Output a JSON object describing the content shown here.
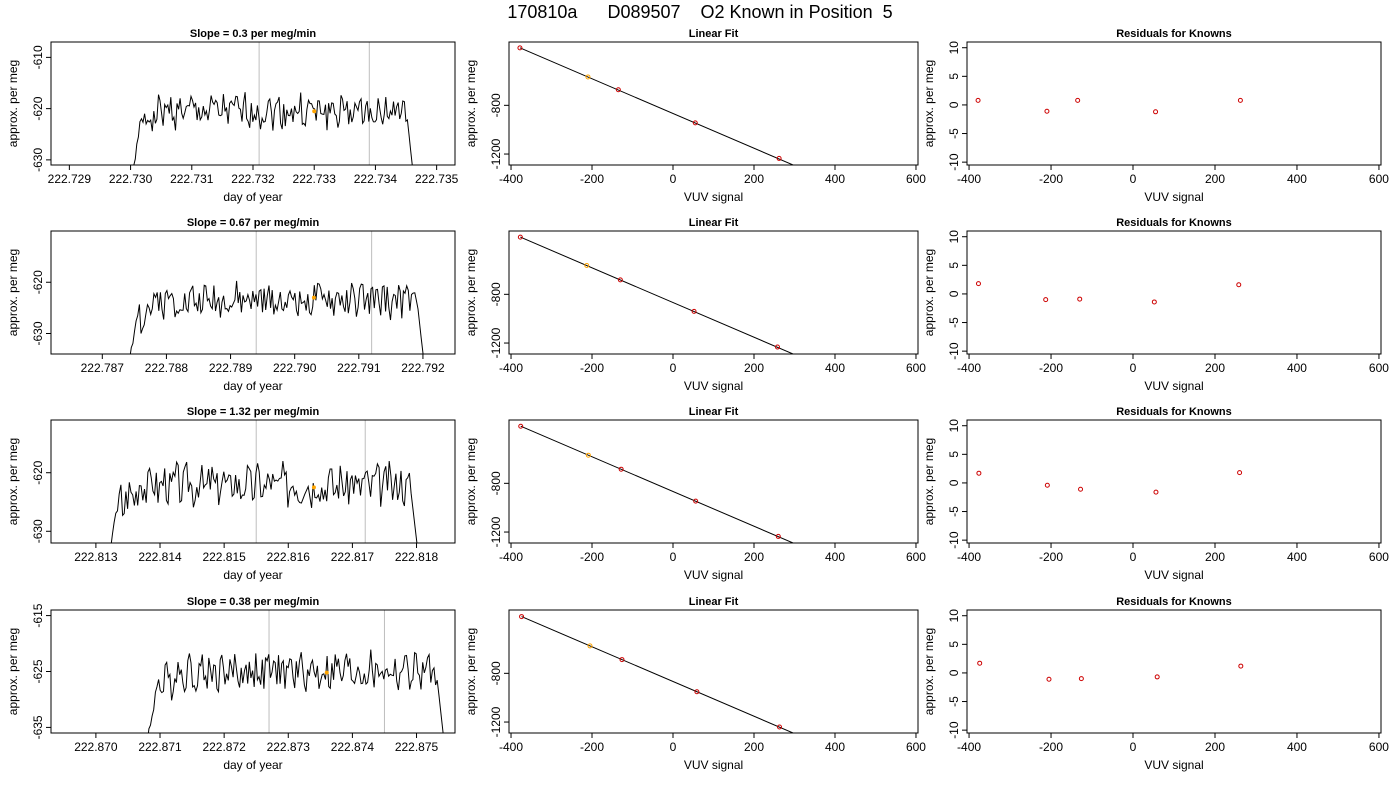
{
  "page_title": "170810a      D089507    O2 Known in Position  5",
  "colors": {
    "trace": "#000000",
    "vline": "#bebebe",
    "marker_orange": "#ffa500",
    "marker_red": "#cd0000",
    "fit_line": "#000000"
  },
  "chart_data": [
    {
      "type": "line",
      "row": 0,
      "title": "Slope =  0.3  per meg/min",
      "xlabel": "day of year",
      "ylabel": "approx. per meg",
      "xlim": [
        222.7287,
        222.7353
      ],
      "ylim": [
        -631,
        -607
      ],
      "xticks": [
        222.729,
        222.73,
        222.731,
        222.732,
        222.733,
        222.734,
        222.735
      ],
      "xtick_labels": [
        "222.729",
        "222.730",
        "222.731",
        "222.732",
        "222.733",
        "222.734",
        "222.735"
      ],
      "yticks": [
        -630,
        -620,
        -610
      ],
      "ytick_labels": [
        "-630",
        "-620",
        "-610"
      ],
      "vlines": [
        222.7321,
        222.7339
      ],
      "trace": {
        "start": 222.7299,
        "end": 222.7347,
        "level": -620.5,
        "amp": 2.3,
        "seed": 1
      },
      "highlight": {
        "x": 222.733,
        "y": -620.5
      }
    },
    {
      "type": "line",
      "row": 1,
      "title": "Slope =  0.67  per meg/min",
      "xlabel": "day of year",
      "ylabel": "approx. per meg",
      "xlim": [
        222.7862,
        222.7925
      ],
      "ylim": [
        -634,
        -610
      ],
      "xticks": [
        222.787,
        222.788,
        222.789,
        222.79,
        222.791,
        222.792
      ],
      "xtick_labels": [
        "222.787",
        "222.788",
        "222.789",
        "222.790",
        "222.791",
        "222.792"
      ],
      "yticks": [
        -630,
        -620
      ],
      "ytick_labels": [
        "-630",
        "-620"
      ],
      "vlines": [
        222.7894,
        222.7912
      ],
      "trace": {
        "start": 222.7873,
        "end": 222.7921,
        "level": -623.5,
        "amp": 2.3,
        "seed": 2
      },
      "highlight": {
        "x": 222.7903,
        "y": -623.0
      }
    },
    {
      "type": "line",
      "row": 2,
      "title": "Slope =  1.32  per meg/min",
      "xlabel": "day of year",
      "ylabel": "approx. per meg",
      "xlim": [
        222.8123,
        222.8186
      ],
      "ylim": [
        -632,
        -611
      ],
      "xticks": [
        222.813,
        222.814,
        222.815,
        222.816,
        222.817,
        222.818
      ],
      "xtick_labels": [
        "222.813",
        "222.814",
        "222.815",
        "222.816",
        "222.817",
        "222.818"
      ],
      "yticks": [
        -630,
        -620
      ],
      "ytick_labels": [
        "-630",
        "-620"
      ],
      "vlines": [
        222.8155,
        222.8172
      ],
      "trace": {
        "start": 222.8131,
        "end": 222.8181,
        "level": -622.0,
        "amp": 2.5,
        "seed": 3
      },
      "highlight": {
        "x": 222.8164,
        "y": -622.5
      }
    },
    {
      "type": "line",
      "row": 3,
      "title": "Slope =  0.38  per meg/min",
      "xlabel": "day of year",
      "ylabel": "approx. per meg",
      "xlim": [
        222.8693,
        222.8756
      ],
      "ylim": [
        -636,
        -614
      ],
      "xticks": [
        222.87,
        222.871,
        222.872,
        222.873,
        222.874,
        222.875
      ],
      "xtick_labels": [
        "222.870",
        "222.871",
        "222.872",
        "222.873",
        "222.874",
        "222.875"
      ],
      "yticks": [
        -635,
        -625,
        -615
      ],
      "ytick_labels": [
        "-635",
        "-625",
        "-615"
      ],
      "vlines": [
        222.8727,
        222.8745
      ],
      "trace": {
        "start": 222.8707,
        "end": 222.8755,
        "level": -625.0,
        "amp": 2.4,
        "seed": 4
      },
      "highlight": {
        "x": 222.8736,
        "y": -625.2
      }
    },
    {
      "type": "scatter",
      "row": 0,
      "title": "Linear Fit",
      "xlabel": "VUV signal",
      "ylabel": "approx. per meg",
      "xlim": [
        -405,
        605
      ],
      "ylim": [
        -1290,
        -280
      ],
      "xticks": [
        -400,
        -200,
        0,
        200,
        400,
        600
      ],
      "xtick_labels": [
        "-400",
        "-200",
        "0",
        "200",
        "400",
        "600"
      ],
      "yticks": [
        -1200,
        -800
      ],
      "ytick_labels": [
        "-1200",
        "-800"
      ],
      "points": [
        {
          "x": -378,
          "y": -328,
          "color": "red"
        },
        {
          "x": -210,
          "y": -567,
          "color": "orange"
        },
        {
          "x": -135,
          "y": -672,
          "color": "red"
        },
        {
          "x": 55,
          "y": -944,
          "color": "red"
        },
        {
          "x": 262,
          "y": -1236,
          "color": "red"
        }
      ],
      "fit_line": {
        "x1": -378,
        "y1": -328,
        "x2": 573,
        "y2": -1684
      }
    },
    {
      "type": "scatter",
      "row": 1,
      "title": "Linear Fit",
      "xlabel": "VUV signal",
      "ylabel": "approx. per meg",
      "xlim": [
        -405,
        605
      ],
      "ylim": [
        -1290,
        -280
      ],
      "xticks": [
        -400,
        -200,
        0,
        200,
        400,
        600
      ],
      "xtick_labels": [
        "-400",
        "-200",
        "0",
        "200",
        "400",
        "600"
      ],
      "yticks": [
        -1200,
        -800
      ],
      "ytick_labels": [
        "-1200",
        "-800"
      ],
      "points": [
        {
          "x": -377,
          "y": -330,
          "color": "red"
        },
        {
          "x": -213,
          "y": -563,
          "color": "orange"
        },
        {
          "x": -130,
          "y": -681,
          "color": "red"
        },
        {
          "x": 52,
          "y": -940,
          "color": "red"
        },
        {
          "x": 258,
          "y": -1233,
          "color": "red"
        }
      ],
      "fit_line": {
        "x1": -377,
        "y1": -330,
        "x2": 573,
        "y2": -1684
      }
    },
    {
      "type": "scatter",
      "row": 2,
      "title": "Linear Fit",
      "xlabel": "VUV signal",
      "ylabel": "approx. per meg",
      "xlim": [
        -405,
        605
      ],
      "ylim": [
        -1290,
        -280
      ],
      "xticks": [
        -400,
        -200,
        0,
        200,
        400,
        600
      ],
      "xtick_labels": [
        "-400",
        "-200",
        "0",
        "200",
        "400",
        "600"
      ],
      "yticks": [
        -1200,
        -800
      ],
      "ytick_labels": [
        "-1200",
        "-800"
      ],
      "points": [
        {
          "x": -376,
          "y": -331,
          "color": "red"
        },
        {
          "x": -209,
          "y": -569,
          "color": "orange"
        },
        {
          "x": -128,
          "y": -684,
          "color": "red"
        },
        {
          "x": 56,
          "y": -946,
          "color": "red"
        },
        {
          "x": 260,
          "y": -1236,
          "color": "red"
        }
      ],
      "fit_line": {
        "x1": -376,
        "y1": -331,
        "x2": 573,
        "y2": -1684
      }
    },
    {
      "type": "scatter",
      "row": 3,
      "title": "Linear Fit",
      "xlabel": "VUV signal",
      "ylabel": "approx. per meg",
      "xlim": [
        -405,
        605
      ],
      "ylim": [
        -1290,
        -280
      ],
      "xticks": [
        -400,
        -200,
        0,
        200,
        400,
        600
      ],
      "xtick_labels": [
        "-400",
        "-200",
        "0",
        "200",
        "400",
        "600"
      ],
      "yticks": [
        -1200,
        -800
      ],
      "ytick_labels": [
        "-1200",
        "-800"
      ],
      "points": [
        {
          "x": -374,
          "y": -334,
          "color": "red"
        },
        {
          "x": -205,
          "y": -575,
          "color": "orange"
        },
        {
          "x": -126,
          "y": -687,
          "color": "red"
        },
        {
          "x": 59,
          "y": -951,
          "color": "red"
        },
        {
          "x": 263,
          "y": -1241,
          "color": "red"
        }
      ],
      "fit_line": {
        "x1": -374,
        "y1": -334,
        "x2": 573,
        "y2": -1684
      }
    },
    {
      "type": "scatter",
      "row": 0,
      "title": "Residuals for Knowns",
      "xlabel": "VUV signal",
      "ylabel": "approx. per meg",
      "xlim": [
        -405,
        605
      ],
      "ylim": [
        -10.5,
        11
      ],
      "xticks": [
        -400,
        -200,
        0,
        200,
        400,
        600
      ],
      "xtick_labels": [
        "-400",
        "-200",
        "0",
        "200",
        "400",
        "600"
      ],
      "yticks": [
        -10,
        -5,
        0,
        5,
        10
      ],
      "ytick_labels": [
        "-10",
        "-5",
        "0",
        "5",
        "10"
      ],
      "points": [
        {
          "x": -378,
          "y": 0.8,
          "color": "red"
        },
        {
          "x": -210,
          "y": -1.1,
          "color": "red"
        },
        {
          "x": -135,
          "y": 0.8,
          "color": "red"
        },
        {
          "x": 55,
          "y": -1.2,
          "color": "red"
        },
        {
          "x": 262,
          "y": 0.8,
          "color": "red"
        }
      ]
    },
    {
      "type": "scatter",
      "row": 1,
      "title": "Residuals for Knowns",
      "xlabel": "VUV signal",
      "ylabel": "approx. per meg",
      "xlim": [
        -405,
        605
      ],
      "ylim": [
        -10.5,
        11
      ],
      "xticks": [
        -400,
        -200,
        0,
        200,
        400,
        600
      ],
      "xtick_labels": [
        "-400",
        "-200",
        "0",
        "200",
        "400",
        "600"
      ],
      "yticks": [
        -10,
        -5,
        0,
        5,
        10
      ],
      "ytick_labels": [
        "-10",
        "-5",
        "0",
        "5",
        "10"
      ],
      "points": [
        {
          "x": -377,
          "y": 1.8,
          "color": "red"
        },
        {
          "x": -213,
          "y": -1.0,
          "color": "red"
        },
        {
          "x": -130,
          "y": -0.9,
          "color": "red"
        },
        {
          "x": 52,
          "y": -1.4,
          "color": "red"
        },
        {
          "x": 258,
          "y": 1.6,
          "color": "red"
        }
      ]
    },
    {
      "type": "scatter",
      "row": 2,
      "title": "Residuals for Knowns",
      "xlabel": "VUV signal",
      "ylabel": "approx. per meg",
      "xlim": [
        -405,
        605
      ],
      "ylim": [
        -10.5,
        11
      ],
      "xticks": [
        -400,
        -200,
        0,
        200,
        400,
        600
      ],
      "xtick_labels": [
        "-400",
        "-200",
        "0",
        "200",
        "400",
        "600"
      ],
      "yticks": [
        -10,
        -5,
        0,
        5,
        10
      ],
      "ytick_labels": [
        "-10",
        "-5",
        "0",
        "5",
        "10"
      ],
      "points": [
        {
          "x": -376,
          "y": 1.7,
          "color": "red"
        },
        {
          "x": -209,
          "y": -0.4,
          "color": "red"
        },
        {
          "x": -128,
          "y": -1.1,
          "color": "red"
        },
        {
          "x": 56,
          "y": -1.6,
          "color": "red"
        },
        {
          "x": 260,
          "y": 1.8,
          "color": "red"
        }
      ]
    },
    {
      "type": "scatter",
      "row": 3,
      "title": "Residuals for Knowns",
      "xlabel": "VUV signal",
      "ylabel": "approx. per meg",
      "xlim": [
        -405,
        605
      ],
      "ylim": [
        -10.5,
        11
      ],
      "xticks": [
        -400,
        -200,
        0,
        200,
        400,
        600
      ],
      "xtick_labels": [
        "-400",
        "-200",
        "0",
        "200",
        "400",
        "600"
      ],
      "yticks": [
        -10,
        -5,
        0,
        5,
        10
      ],
      "ytick_labels": [
        "-10",
        "-5",
        "0",
        "5",
        "10"
      ],
      "points": [
        {
          "x": -374,
          "y": 1.7,
          "color": "red"
        },
        {
          "x": -205,
          "y": -1.1,
          "color": "red"
        },
        {
          "x": -126,
          "y": -1.0,
          "color": "red"
        },
        {
          "x": 59,
          "y": -0.7,
          "color": "red"
        },
        {
          "x": 263,
          "y": 1.2,
          "color": "red"
        }
      ]
    }
  ]
}
